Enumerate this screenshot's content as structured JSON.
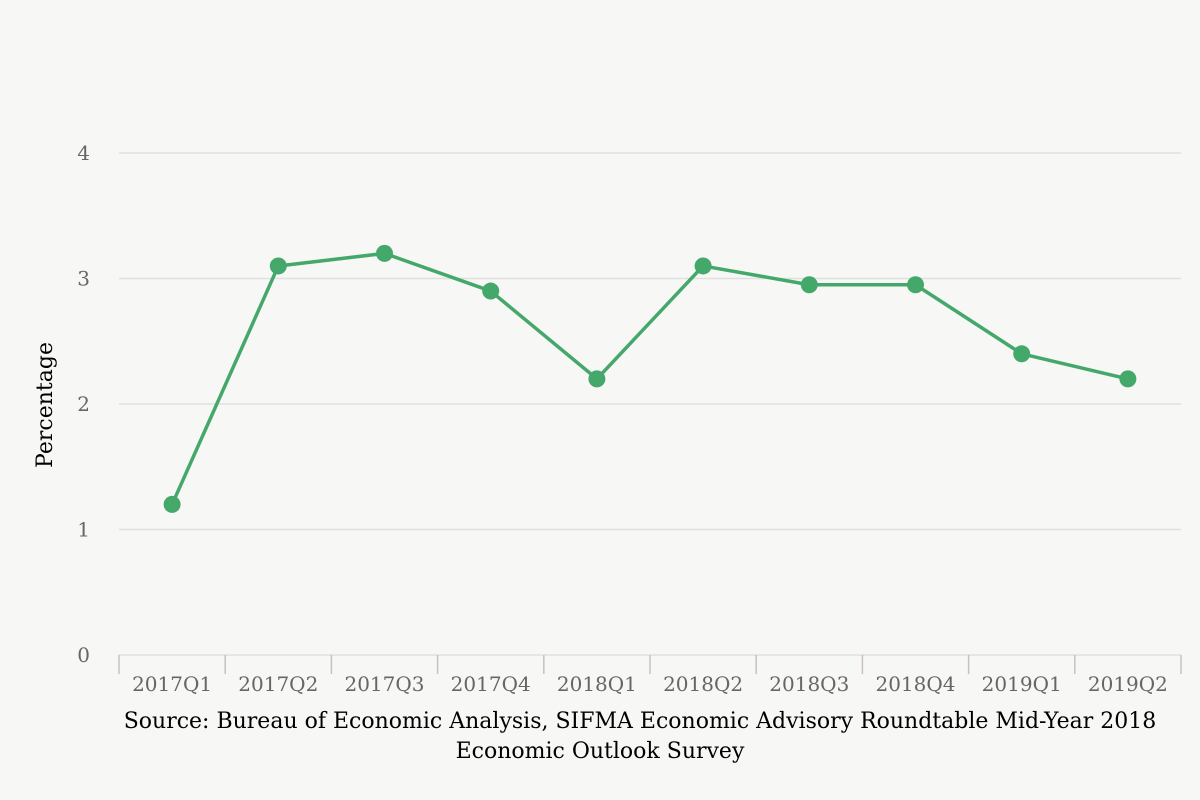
{
  "chart_data": {
    "type": "line",
    "title": "",
    "xlabel": "",
    "ylabel": "Percentage",
    "categories": [
      "2017Q1",
      "2017Q2",
      "2017Q3",
      "2017Q4",
      "2018Q1",
      "2018Q2",
      "2018Q3",
      "2018Q4",
      "2019Q1",
      "2019Q2"
    ],
    "series": [
      {
        "values": [
          1.2,
          3.1,
          3.2,
          2.9,
          2.2,
          3.1,
          2.95,
          2.95,
          2.4,
          2.2
        ]
      }
    ],
    "ylim": [
      0,
      4
    ],
    "yticks": [
      "0",
      "1",
      "2",
      "3",
      "4"
    ],
    "grid": true,
    "legend": "none",
    "colors": {
      "line": "#45a86b",
      "grid": "#e0e0e0",
      "background": "#f7f7f5"
    }
  },
  "source": {
    "line1": "Source: Bureau of Economic Analysis, SIFMA Economic Advisory Roundtable Mid-Year 2018",
    "line2": "Economic Outlook Survey"
  }
}
